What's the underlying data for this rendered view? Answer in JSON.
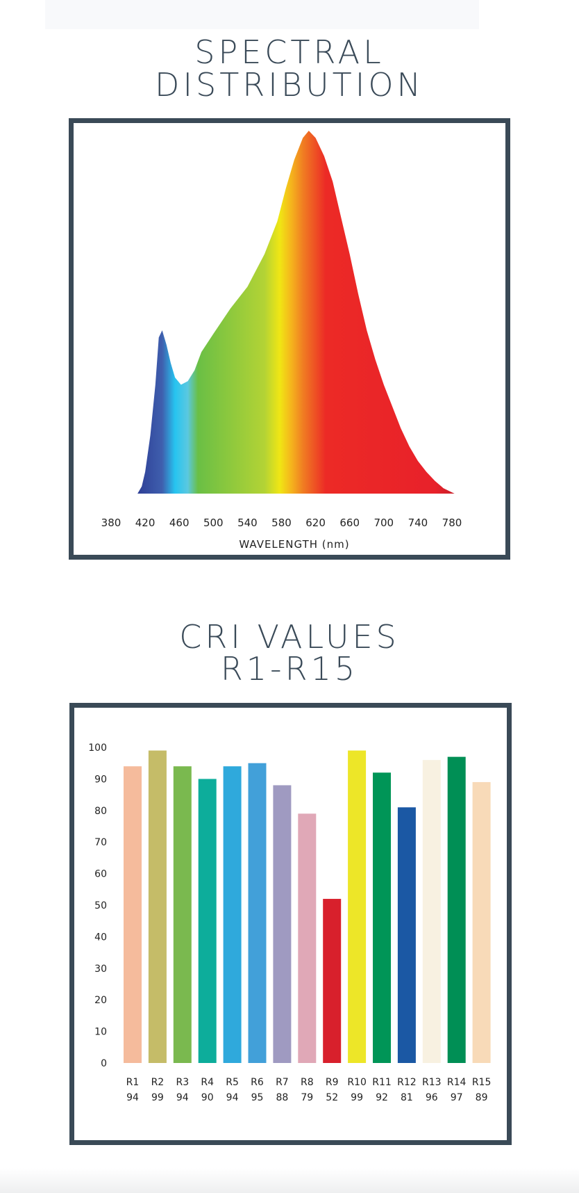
{
  "spectral": {
    "title_line1": "SPECTRAL",
    "title_line2": "DISTRIBUTION",
    "chart_data": {
      "type": "area",
      "xlabel": "WAVELENGTH (nm)",
      "xlim": [
        380,
        780
      ],
      "x_ticks": [
        "380",
        "420",
        "460",
        "500",
        "540",
        "580",
        "620",
        "660",
        "700",
        "740",
        "780"
      ],
      "ylabel": "",
      "y_relative": true,
      "points": [
        [
          411,
          0
        ],
        [
          416,
          0.02
        ],
        [
          420,
          0.06
        ],
        [
          426,
          0.16
        ],
        [
          432,
          0.3
        ],
        [
          436,
          0.43
        ],
        [
          440,
          0.45
        ],
        [
          445,
          0.41
        ],
        [
          450,
          0.36
        ],
        [
          455,
          0.32
        ],
        [
          462,
          0.3
        ],
        [
          470,
          0.31
        ],
        [
          478,
          0.34
        ],
        [
          486,
          0.39
        ],
        [
          500,
          0.44
        ],
        [
          520,
          0.51
        ],
        [
          540,
          0.57
        ],
        [
          560,
          0.66
        ],
        [
          575,
          0.75
        ],
        [
          585,
          0.84
        ],
        [
          595,
          0.92
        ],
        [
          605,
          0.98
        ],
        [
          612,
          1.0
        ],
        [
          620,
          0.98
        ],
        [
          630,
          0.93
        ],
        [
          640,
          0.86
        ],
        [
          650,
          0.76
        ],
        [
          660,
          0.66
        ],
        [
          670,
          0.55
        ],
        [
          680,
          0.45
        ],
        [
          690,
          0.37
        ],
        [
          700,
          0.3
        ],
        [
          710,
          0.24
        ],
        [
          720,
          0.18
        ],
        [
          730,
          0.13
        ],
        [
          740,
          0.09
        ],
        [
          750,
          0.06
        ],
        [
          760,
          0.035
        ],
        [
          770,
          0.015
        ],
        [
          783,
          0
        ]
      ],
      "gradient_colors": [
        "#2e3f96",
        "#3f5fae",
        "#26c4f0",
        "#5bc8e0",
        "#6abf45",
        "#b3d335",
        "#f0e614",
        "#f5b21d",
        "#f07e22",
        "#ec2a26",
        "#e8212a",
        "#c8202a"
      ]
    }
  },
  "cri": {
    "title_line1": "CRI VALUES",
    "title_line2": "R1-R15",
    "chart_data": {
      "type": "bar",
      "categories": [
        "R1",
        "R2",
        "R3",
        "R4",
        "R5",
        "R6",
        "R7",
        "R8",
        "R9",
        "R10",
        "R11",
        "R12",
        "R13",
        "R14",
        "R15"
      ],
      "values": [
        94,
        99,
        94,
        90,
        94,
        95,
        88,
        79,
        52,
        99,
        92,
        81,
        96,
        97,
        89
      ],
      "value_labels": [
        "94",
        "99",
        "94",
        "90",
        "94",
        "95",
        "88",
        "79",
        "52",
        "99",
        "92",
        "81",
        "96",
        "97",
        "89"
      ],
      "colors": [
        "#f5bb9c",
        "#c5bc68",
        "#7ab94f",
        "#0dad9b",
        "#2fa9dc",
        "#42a0d9",
        "#9f9ac1",
        "#e0a8b7",
        "#d8202c",
        "#ede628",
        "#009557",
        "#1b58a4",
        "#f8f1e1",
        "#008f55",
        "#f8dab8"
      ],
      "ylim": [
        0,
        100
      ],
      "y_ticks": [
        "0",
        "10",
        "20",
        "30",
        "40",
        "50",
        "60",
        "70",
        "80",
        "90",
        "100"
      ],
      "title": "",
      "xlabel": "",
      "ylabel": ""
    }
  }
}
